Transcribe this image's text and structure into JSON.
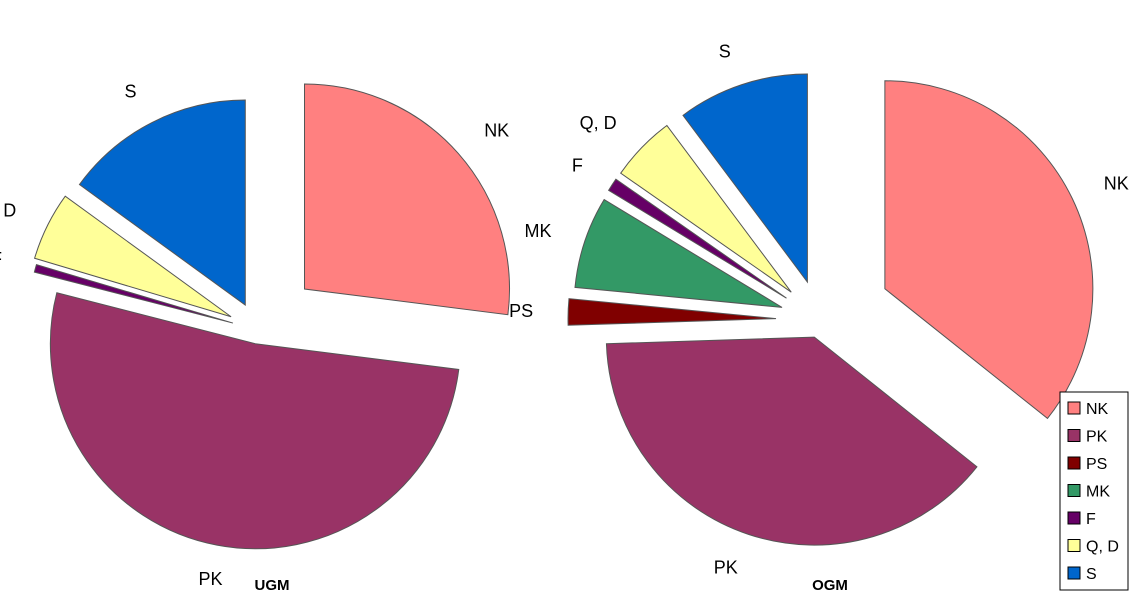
{
  "legend": {
    "entries": [
      {
        "label": "NK",
        "color": "#ff8080"
      },
      {
        "label": "PK",
        "color": "#993366"
      },
      {
        "label": "PS",
        "color": "#800000"
      },
      {
        "label": "MK",
        "color": "#339966"
      },
      {
        "label": "F",
        "color": "#660066"
      },
      {
        "label": "Q, D",
        "color": "#ffff99"
      },
      {
        "label": "S",
        "color": "#0066cc"
      }
    ]
  },
  "chart_data": [
    {
      "type": "pie",
      "title": "UGM",
      "exploded": true,
      "categories": [
        "NK",
        "PK",
        "F",
        "Q, D",
        "S"
      ],
      "values": [
        27,
        52,
        0.6,
        5.4,
        15
      ],
      "labels": [
        "NK",
        "PK",
        "F",
        "Q, D",
        "S"
      ],
      "colors": [
        "#ff8080",
        "#993366",
        "#660066",
        "#ffff99",
        "#0066cc"
      ]
    },
    {
      "type": "pie",
      "title": "OGM",
      "exploded": true,
      "categories": [
        "NK",
        "PK",
        "PS",
        "MK",
        "F",
        "Q, D",
        "S"
      ],
      "values": [
        35,
        38,
        2,
        7,
        1,
        5,
        10
      ],
      "labels": [
        "NK",
        "PK",
        "PS",
        "MK",
        "F",
        "Q, D",
        "S"
      ],
      "colors": [
        "#ff8080",
        "#993366",
        "#800000",
        "#339966",
        "#660066",
        "#ffff99",
        "#0066cc"
      ]
    }
  ]
}
